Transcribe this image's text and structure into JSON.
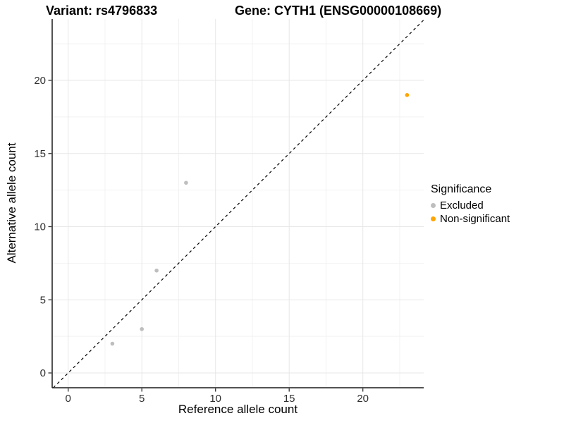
{
  "chart_data": {
    "type": "scatter",
    "title_left": "Variant: rs4796833",
    "title_right": "Gene: CYTH1 (ENSG00000108669)",
    "xlabel": "Reference allele count",
    "ylabel": "Alternative allele count",
    "x_ticks": [
      0,
      5,
      10,
      15,
      20
    ],
    "y_ticks": [
      0,
      5,
      10,
      15,
      20
    ],
    "x_minor_gridlines": [
      2.5,
      7.5,
      12.5,
      17.5,
      22.5
    ],
    "y_minor_gridlines": [
      2.5,
      7.5,
      12.5,
      17.5,
      22.5
    ],
    "xlim": [
      -1.05,
      24.15
    ],
    "ylim": [
      -1.05,
      24.3
    ],
    "grid": true,
    "identity_line": {
      "style": "dashed",
      "slope": 1,
      "intercept": 0,
      "color": "#000000"
    },
    "series": [
      {
        "name": "Excluded",
        "color": "#BEBEBE",
        "points": [
          [
            3,
            2
          ],
          [
            5,
            3
          ],
          [
            6,
            7
          ],
          [
            8,
            13
          ]
        ]
      },
      {
        "name": "Non-significant",
        "color": "#FFA500",
        "points": [
          [
            23,
            19
          ]
        ]
      }
    ],
    "legend": {
      "title": "Significance",
      "position": "right",
      "items": [
        {
          "label": "Excluded",
          "color": "#BEBEBE"
        },
        {
          "label": "Non-significant",
          "color": "#FFA500"
        }
      ]
    }
  }
}
